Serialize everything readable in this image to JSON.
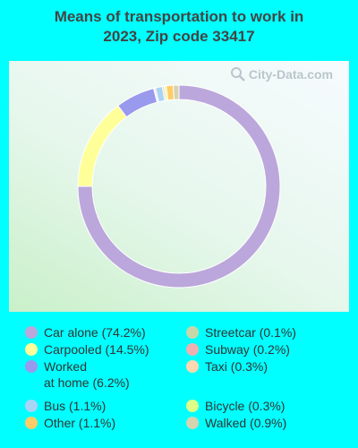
{
  "title_line1": "Means of transportation to work in",
  "title_line2": "2023, Zip code 33417",
  "watermark": "City-Data.com",
  "chart_data": {
    "type": "pie",
    "donut": true,
    "title": "Means of transportation to work in 2023, Zip code 33417",
    "legend_position": "bottom",
    "slices": [
      {
        "label": "Car alone",
        "legend": "Car alone (74.2%)",
        "value": 74.2,
        "color": "#bba7db"
      },
      {
        "label": "Carpooled",
        "legend": "Carpooled (14.5%)",
        "value": 14.5,
        "color": "#ffff99"
      },
      {
        "label": "Worked at home",
        "legend": "Worked\nat home (6.2%)",
        "value": 6.2,
        "color": "#9999ee"
      },
      {
        "label": "Streetcar",
        "legend": "Streetcar (0.1%)",
        "value": 0.1,
        "color": "#c6d8a8"
      },
      {
        "label": "Subway",
        "legend": "Subway (0.2%)",
        "value": 0.2,
        "color": "#f0b0b0"
      },
      {
        "label": "Bus",
        "legend": "Bus (1.1%)",
        "value": 1.1,
        "color": "#aad4f5"
      },
      {
        "label": "Taxi",
        "legend": "Taxi (0.3%)",
        "value": 0.3,
        "color": "#ffd7b0"
      },
      {
        "label": "Bicycle",
        "legend": "Bicycle (0.3%)",
        "value": 0.3,
        "color": "#ddff88"
      },
      {
        "label": "Other",
        "legend": "Other (1.1%)",
        "value": 1.1,
        "color": "#ffcc66"
      },
      {
        "label": "Walked",
        "legend": "Walked (0.9%)",
        "value": 0.9,
        "color": "#d6d3b0"
      }
    ],
    "legend_order": [
      "Car alone",
      "Carpooled",
      "Worked at home",
      "Bus",
      "Other",
      "Streetcar",
      "Subway",
      "Taxi",
      "Bicycle",
      "Walked"
    ]
  }
}
